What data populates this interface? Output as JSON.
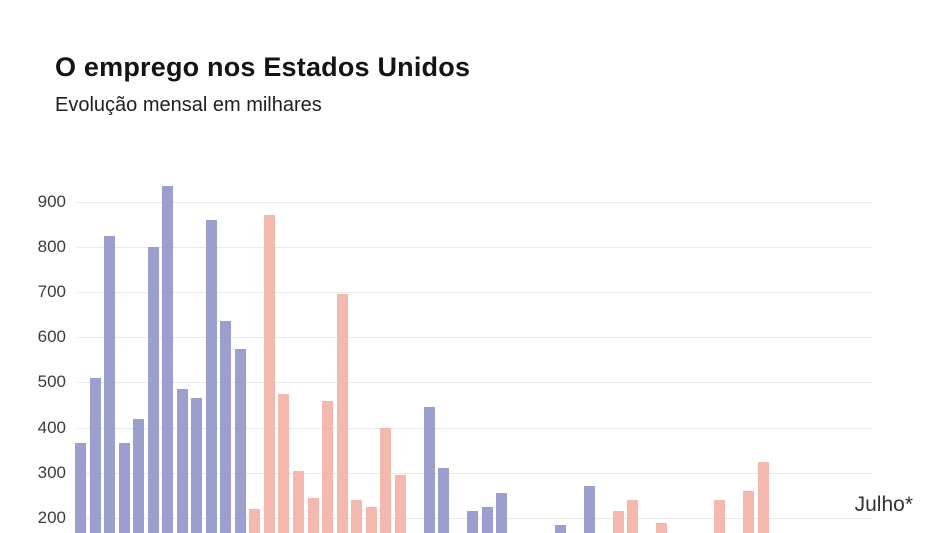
{
  "title": "O emprego nos Estados Unidos",
  "subtitle": "Evolução mensal em milhares",
  "colors": {
    "background": "#ffffff",
    "title_text": "#141414",
    "subtitle_text": "#1f1f1f",
    "axis_text": "#3c3c3c",
    "gridline": "#e9e9eb",
    "series_purple": "#9b9fcd",
    "series_pink": "#f4b9ae"
  },
  "chart_data": {
    "type": "bar",
    "title": "O emprego nos Estados Unidos",
    "subtitle": "Evolução mensal em milhares",
    "ylabel": "milhares",
    "y_axis": {
      "ticks": [
        200,
        300,
        400,
        500,
        600,
        700,
        800,
        900
      ],
      "gridlines": true
    },
    "x_axis_last_label": "Julho*",
    "note": "48 monthly bars in 4 colour groups of 12; null = bar not visible in cropped screenshot (value below visible range); chart bottoms are cut off by the image edge",
    "bars": [
      {
        "value": 365,
        "group": "purple"
      },
      {
        "value": 510,
        "group": "purple"
      },
      {
        "value": 825,
        "group": "purple"
      },
      {
        "value": 365,
        "group": "purple"
      },
      {
        "value": 420,
        "group": "purple"
      },
      {
        "value": 800,
        "group": "purple"
      },
      {
        "value": 935,
        "group": "purple"
      },
      {
        "value": 485,
        "group": "purple"
      },
      {
        "value": 465,
        "group": "purple"
      },
      {
        "value": 860,
        "group": "purple"
      },
      {
        "value": 635,
        "group": "purple"
      },
      {
        "value": 575,
        "group": "purple"
      },
      {
        "value": 220,
        "group": "pink"
      },
      {
        "value": 870,
        "group": "pink"
      },
      {
        "value": 475,
        "group": "pink"
      },
      {
        "value": 305,
        "group": "pink"
      },
      {
        "value": 245,
        "group": "pink"
      },
      {
        "value": 460,
        "group": "pink"
      },
      {
        "value": 695,
        "group": "pink"
      },
      {
        "value": 240,
        "group": "pink"
      },
      {
        "value": 225,
        "group": "pink"
      },
      {
        "value": 400,
        "group": "pink"
      },
      {
        "value": 295,
        "group": "pink"
      },
      {
        "value": null,
        "group": "pink"
      },
      {
        "value": 445,
        "group": "purple"
      },
      {
        "value": 310,
        "group": "purple"
      },
      {
        "value": null,
        "group": "purple"
      },
      {
        "value": 215,
        "group": "purple"
      },
      {
        "value": 225,
        "group": "purple"
      },
      {
        "value": 255,
        "group": "purple"
      },
      {
        "value": null,
        "group": "purple"
      },
      {
        "value": null,
        "group": "purple"
      },
      {
        "value": null,
        "group": "purple"
      },
      {
        "value": 185,
        "group": "purple"
      },
      {
        "value": null,
        "group": "purple"
      },
      {
        "value": 270,
        "group": "purple"
      },
      {
        "value": null,
        "group": "pink"
      },
      {
        "value": 215,
        "group": "pink"
      },
      {
        "value": 240,
        "group": "pink"
      },
      {
        "value": null,
        "group": "pink"
      },
      {
        "value": 190,
        "group": "pink"
      },
      {
        "value": null,
        "group": "pink"
      },
      {
        "value": null,
        "group": "pink"
      },
      {
        "value": null,
        "group": "pink"
      },
      {
        "value": 240,
        "group": "pink"
      },
      {
        "value": null,
        "group": "pink"
      },
      {
        "value": 260,
        "group": "pink"
      },
      {
        "value": 325,
        "group": "pink"
      }
    ]
  }
}
